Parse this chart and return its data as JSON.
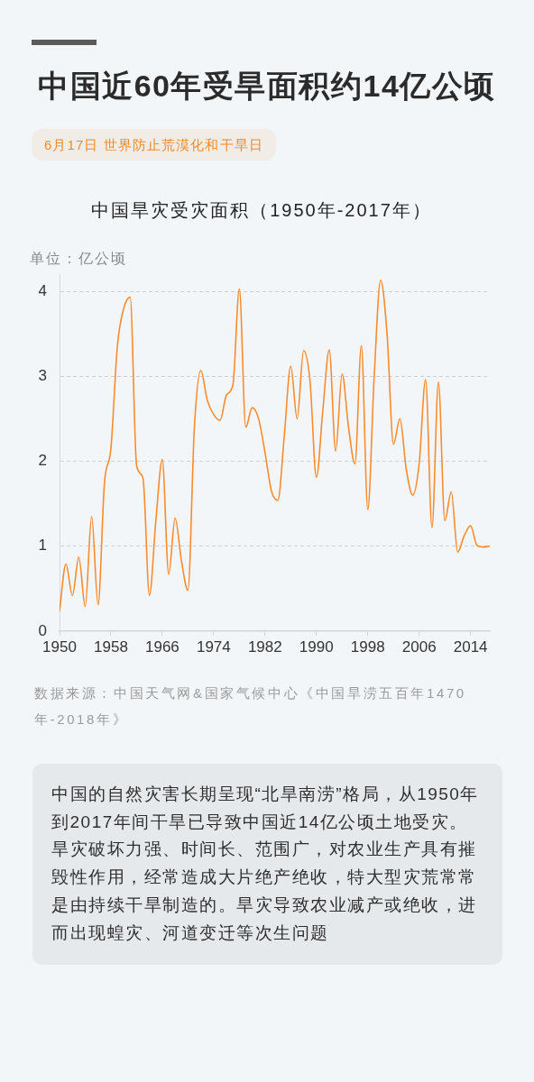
{
  "chart_data": {
    "type": "line",
    "title": "中国近60年受旱面积约14亿公顷",
    "subtitle": "中国旱灾受灾面积（1950年-2017年）",
    "ylabel": "单位：亿公顷",
    "annotations": [
      "6月17日 世界防止荒漠化和干旱日",
      "数据来源：中国天气网&国家气候中心《中国旱涝五百年1470年-2018年》",
      "中国的自然灾害长期呈现“北旱南涝”格局，从1950年到2017年间干旱已导致中国近14亿公顷土地受灾。旱灾破坏力强、时间长、范围广，对农业生产具有摧毁性作用，经常造成大片绝产绝收，特大型灾荒常常是由持续干旱制造的。旱灾导致农业减产或绝收，进而出现蝗灾、河道变迁等次生问题"
    ],
    "x": [
      1950,
      1951,
      1952,
      1953,
      1954,
      1955,
      1956,
      1957,
      1958,
      1959,
      1960,
      1961,
      1962,
      1963,
      1964,
      1965,
      1966,
      1967,
      1968,
      1969,
      1970,
      1971,
      1972,
      1973,
      1974,
      1975,
      1976,
      1977,
      1978,
      1979,
      1980,
      1981,
      1982,
      1983,
      1984,
      1985,
      1986,
      1987,
      1988,
      1989,
      1990,
      1991,
      1992,
      1993,
      1994,
      1995,
      1996,
      1997,
      1998,
      1999,
      2000,
      2001,
      2002,
      2003,
      2004,
      2005,
      2006,
      2007,
      2008,
      2009,
      2010,
      2011,
      2012,
      2013,
      2014,
      2015,
      2016,
      2017
    ],
    "values": [
      0.24,
      0.79,
      0.42,
      0.87,
      0.29,
      1.35,
      0.31,
      1.75,
      2.15,
      3.35,
      3.8,
      3.93,
      1.95,
      1.8,
      0.42,
      1.3,
      2.02,
      0.67,
      1.33,
      0.82,
      0.48,
      2.4,
      3.07,
      2.72,
      2.55,
      2.48,
      2.78,
      2.9,
      4.03,
      2.4,
      2.63,
      2.5,
      2.1,
      1.65,
      1.54,
      2.3,
      3.12,
      2.5,
      3.3,
      2.95,
      1.81,
      2.6,
      3.31,
      2.12,
      3.03,
      2.4,
      1.97,
      3.36,
      1.43,
      3.0,
      4.13,
      3.5,
      2.2,
      2.5,
      1.9,
      1.6,
      1.97,
      2.96,
      1.22,
      2.93,
      1.3,
      1.64,
      0.93,
      1.12,
      1.24,
      1.01,
      0.99,
      1.0
    ],
    "color": "#fa8b2c",
    "xlim": [
      1950,
      2017
    ],
    "xticks": [
      1950,
      1958,
      1966,
      1974,
      1982,
      1990,
      1998,
      2006,
      2014
    ],
    "ylim": [
      0,
      4.2
    ],
    "yticks": [
      0,
      1,
      2,
      3,
      4
    ],
    "grid": "y"
  }
}
